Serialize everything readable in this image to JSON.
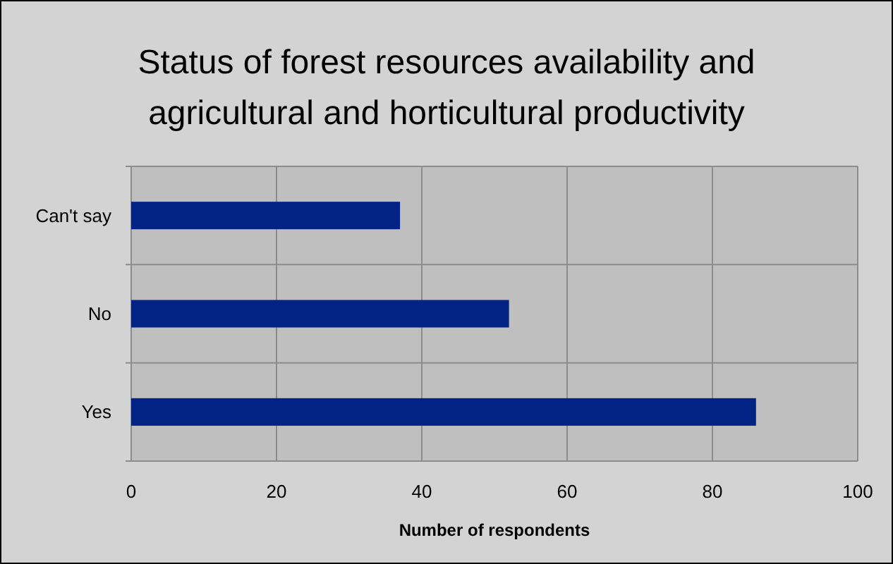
{
  "chart_data": {
    "type": "bar",
    "orientation": "horizontal",
    "title": "Status of forest resources availability and agricultural and horticultural productivity",
    "xlabel": "Number of respondents",
    "categories": [
      "Can't say",
      "No",
      "Yes"
    ],
    "values": [
      37,
      52,
      86
    ],
    "color": "#022284",
    "xlim": [
      0,
      100
    ],
    "xticks": [
      0,
      20,
      40,
      60,
      80,
      100
    ],
    "grid": true
  }
}
